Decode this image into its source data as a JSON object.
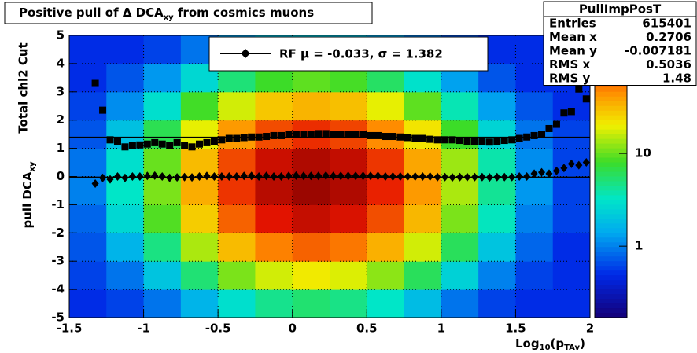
{
  "chart_data": {
    "type": "heatmap",
    "title": [
      "Positive pull of Δ DCA",
      "xy",
      " from cosmics muons"
    ],
    "xlabel": [
      "Log",
      "10",
      "(p",
      "TAv",
      ")"
    ],
    "ylabel": "Total chi2 Cut",
    "ylabel2": [
      "pull DCA",
      "xy"
    ],
    "xlim": [
      -1.5,
      2
    ],
    "ylim": [
      -5,
      5
    ],
    "xticks": [
      -1.5,
      -1,
      -0.5,
      0,
      0.5,
      1,
      1.5,
      2
    ],
    "yticks": [
      -5,
      -4,
      -3,
      -2,
      -1,
      0,
      1,
      2,
      3,
      4,
      5
    ],
    "grid": true,
    "zlim": [
      0.17,
      187
    ],
    "zlog": true,
    "zticks": [
      1,
      10
    ],
    "xbins": [
      -1.5,
      -1.25,
      -1,
      -0.75,
      -0.5,
      -0.25,
      0,
      0.25,
      0.5,
      0.75,
      1,
      1.25,
      1.5,
      1.75,
      2
    ],
    "ybins": [
      -5,
      -4,
      -3,
      -2,
      -1,
      0,
      1,
      2,
      3,
      4,
      5
    ],
    "z": [
      [
        0.5,
        0.6,
        0.9,
        1.6,
        2.9,
        4.5,
        5.3,
        4.7,
        3.2,
        1.8,
        0.9,
        0.6,
        0.5,
        0.5
      ],
      [
        0.6,
        0.9,
        2,
        5.2,
        11,
        17,
        21,
        18,
        12,
        6,
        2.4,
        1,
        0.6,
        0.5
      ],
      [
        0.7,
        1.6,
        4.8,
        14,
        31,
        49,
        59,
        52,
        34,
        17,
        6,
        2,
        0.8,
        0.5
      ],
      [
        0.8,
        2.6,
        8.9,
        27,
        59,
        95,
        115,
        101,
        66,
        32,
        11,
        3.4,
        1,
        0.6
      ],
      [
        1,
        3.2,
        11,
        35,
        77,
        125,
        150,
        132,
        86,
        41,
        14,
        4.3,
        1.2,
        0.6
      ],
      [
        0.9,
        2.9,
        10,
        31,
        68,
        110,
        132,
        117,
        76,
        37,
        13,
        3.8,
        1.1,
        0.6
      ],
      [
        0.7,
        1.9,
        6.3,
        19,
        41,
        67,
        80,
        70,
        46,
        22,
        8,
        2.5,
        0.9,
        0.6
      ],
      [
        0.6,
        1.1,
        2.9,
        8.2,
        17,
        28,
        33,
        30,
        19,
        9.5,
        3.6,
        1.3,
        0.7,
        0.5
      ],
      [
        0.5,
        0.7,
        1.2,
        2.6,
        5.1,
        8,
        9.5,
        8.4,
        5.7,
        3,
        1.3,
        0.7,
        0.5,
        0.5
      ],
      [
        0.5,
        0.5,
        0.6,
        0.9,
        1.3,
        1.9,
        2.1,
        1.9,
        1.4,
        1,
        0.7,
        0.5,
        0.5,
        0.5
      ]
    ],
    "x": [
      -1.325,
      -1.275,
      -1.225,
      -1.175,
      -1.125,
      -1.075,
      -1.025,
      -0.975,
      -0.925,
      -0.875,
      -0.825,
      -0.775,
      -0.725,
      -0.675,
      -0.625,
      -0.575,
      -0.525,
      -0.475,
      -0.425,
      -0.375,
      -0.325,
      -0.275,
      -0.225,
      -0.175,
      -0.125,
      -0.075,
      -0.025,
      0.025,
      0.075,
      0.125,
      0.175,
      0.225,
      0.275,
      0.325,
      0.375,
      0.425,
      0.475,
      0.525,
      0.575,
      0.625,
      0.675,
      0.725,
      0.775,
      0.825,
      0.875,
      0.925,
      0.975,
      1.025,
      1.075,
      1.125,
      1.175,
      1.225,
      1.275,
      1.325,
      1.375,
      1.425,
      1.475,
      1.525,
      1.575,
      1.625,
      1.675,
      1.725,
      1.775,
      1.825,
      1.875,
      1.925,
      1.975
    ],
    "series": [
      {
        "marker": "square",
        "color": "#000000",
        "values": [
          3.3,
          2.35,
          1.3,
          1.25,
          1.05,
          1.1,
          1.12,
          1.15,
          1.2,
          1.15,
          1.1,
          1.2,
          1.1,
          1.05,
          1.15,
          1.2,
          1.25,
          1.3,
          1.35,
          1.35,
          1.38,
          1.4,
          1.4,
          1.42,
          1.45,
          1.45,
          1.48,
          1.5,
          1.5,
          1.5,
          1.52,
          1.52,
          1.5,
          1.5,
          1.5,
          1.48,
          1.48,
          1.45,
          1.45,
          1.42,
          1.42,
          1.4,
          1.38,
          1.35,
          1.35,
          1.32,
          1.3,
          1.3,
          1.3,
          1.28,
          1.25,
          1.25,
          1.25,
          1.22,
          1.25,
          1.28,
          1.3,
          1.35,
          1.4,
          1.45,
          1.5,
          1.7,
          1.85,
          2.25,
          2.3,
          3.1,
          2.75
        ]
      },
      {
        "marker": "diamond",
        "color": "#000000",
        "values": [
          -0.25,
          -0.05,
          -0.1,
          0,
          -0.05,
          0,
          0,
          0.02,
          0.03,
          0,
          -0.05,
          -0.03,
          -0.02,
          -0.03,
          0,
          0.02,
          0,
          0,
          0,
          0,
          0.02,
          0.02,
          0,
          0.02,
          0,
          0,
          0.02,
          0.03,
          0.02,
          0.02,
          0.02,
          0.03,
          0.02,
          0.02,
          0.02,
          0.02,
          0.02,
          0.02,
          0.02,
          0,
          0,
          0,
          0,
          0,
          0,
          0,
          -0.02,
          -0.02,
          -0.03,
          -0.02,
          -0.02,
          -0.02,
          -0.02,
          -0.03,
          -0.02,
          -0.02,
          -0.02,
          0,
          0,
          0.1,
          0.15,
          0.1,
          0.2,
          0.3,
          0.45,
          0.4,
          0.5
        ]
      }
    ],
    "fit": {
      "mu": -0.033,
      "sigma": 1.382,
      "label": "RF μ = -0.033, σ =   1.382"
    },
    "stats": {
      "title": "PullImpPosT",
      "rows": [
        {
          "label": "Entries",
          "value": 615401
        },
        {
          "label": "Mean x",
          "value": 0.2706
        },
        {
          "label": "Mean y",
          "value": -0.007181
        },
        {
          "label": "RMS x",
          "value": 0.5036
        },
        {
          "label": "RMS y",
          "value": 1.48
        }
      ]
    }
  }
}
